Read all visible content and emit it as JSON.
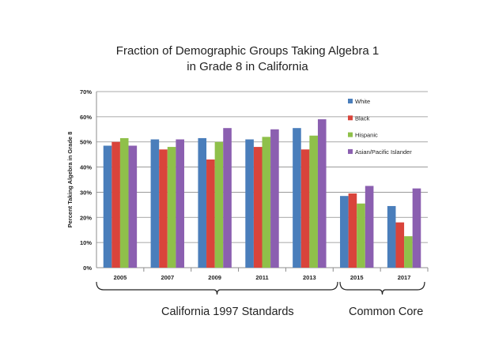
{
  "chart_data": {
    "type": "bar",
    "title_line1": "Fraction of Demographic Groups Taking Algebra 1",
    "title_line2": "in Grade 8 in California",
    "ylabel": "Percent Taking Algebra in Grade 8",
    "xlabel": "",
    "ylim": [
      0,
      70
    ],
    "yticks": [
      "0%",
      "10%",
      "20%",
      "30%",
      "40%",
      "50%",
      "60%",
      "70%"
    ],
    "categories": [
      "2005",
      "2007",
      "2009",
      "2011",
      "2013",
      "2015",
      "2017"
    ],
    "series": [
      {
        "name": "White",
        "color": "#4a7ebb",
        "values": [
          48.5,
          51,
          51.5,
          51,
          55.5,
          28.5,
          24.5
        ]
      },
      {
        "name": "Black",
        "color": "#d9443b",
        "values": [
          50,
          47,
          43,
          48,
          47,
          29.5,
          18
        ]
      },
      {
        "name": "Hispanic",
        "color": "#8fc04a",
        "values": [
          51.5,
          48,
          50,
          52,
          52.5,
          25.5,
          12.5
        ]
      },
      {
        "name": "Asian/Pacific Islander",
        "color": "#8b5fb0",
        "values": [
          48.5,
          51,
          55.5,
          55,
          59,
          32.5,
          31.5
        ]
      }
    ],
    "grid": true,
    "legend_position": "top-right"
  },
  "groups": [
    {
      "label": "California 1997 Standards"
    },
    {
      "label": "Common Core"
    }
  ]
}
